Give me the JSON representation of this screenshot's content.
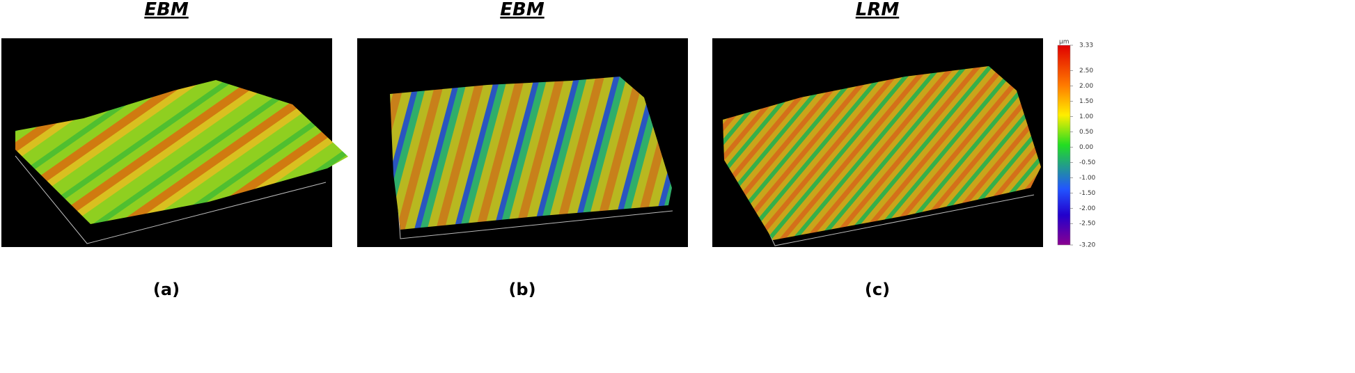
{
  "panels": [
    {
      "title": "EBM",
      "caption": "(a)"
    },
    {
      "title": "EBM",
      "caption": "(b)"
    },
    {
      "title": "LRM",
      "caption": "(c)"
    }
  ],
  "colorbar": {
    "unit": "µm",
    "range": [
      -3.2,
      3.33
    ],
    "ticks": [
      3.33,
      {
        "value": 2.5,
        "label": "2.50"
      },
      {
        "value": 2,
        "label": "2.00"
      },
      {
        "value": 1.5,
        "label": "1.50"
      },
      {
        "value": 1,
        "label": "1.00"
      },
      {
        "value": 0.5,
        "label": "0.50"
      },
      {
        "value": 0,
        "label": "0.00"
      },
      {
        "value": -0.5,
        "label": "-0.50"
      },
      {
        "value": -1,
        "label": "-1.00"
      },
      {
        "value": -1.5,
        "label": "-1.50"
      },
      {
        "value": -2,
        "label": "-2.00"
      },
      {
        "value": -2.5,
        "label": "-2.50"
      },
      {
        "value": -3.2,
        "label": "-3.20"
      }
    ]
  }
}
